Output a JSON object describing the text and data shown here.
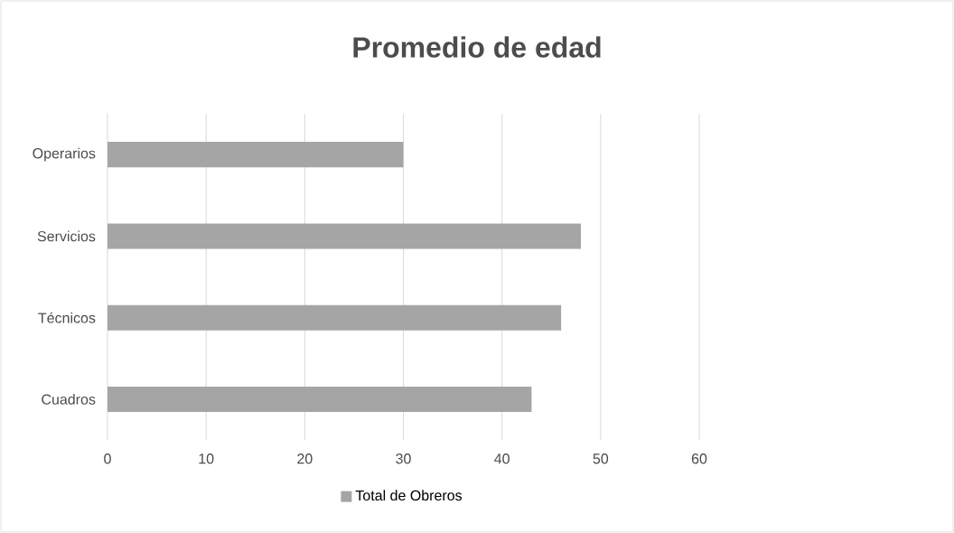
{
  "chart_data": {
    "type": "bar",
    "orientation": "horizontal",
    "title": "Promedio de edad",
    "categories": [
      "Operarios",
      "Servicios",
      "Técnicos",
      "Cuadros"
    ],
    "series": [
      {
        "name": "Total de Obreros",
        "color": "#a5a5a5",
        "values": [
          30,
          48,
          46,
          43
        ]
      }
    ],
    "xlim": [
      0,
      60
    ],
    "xticks": [
      0,
      10,
      20,
      30,
      40,
      50,
      60
    ],
    "grid": "x",
    "legend": "bottom"
  }
}
